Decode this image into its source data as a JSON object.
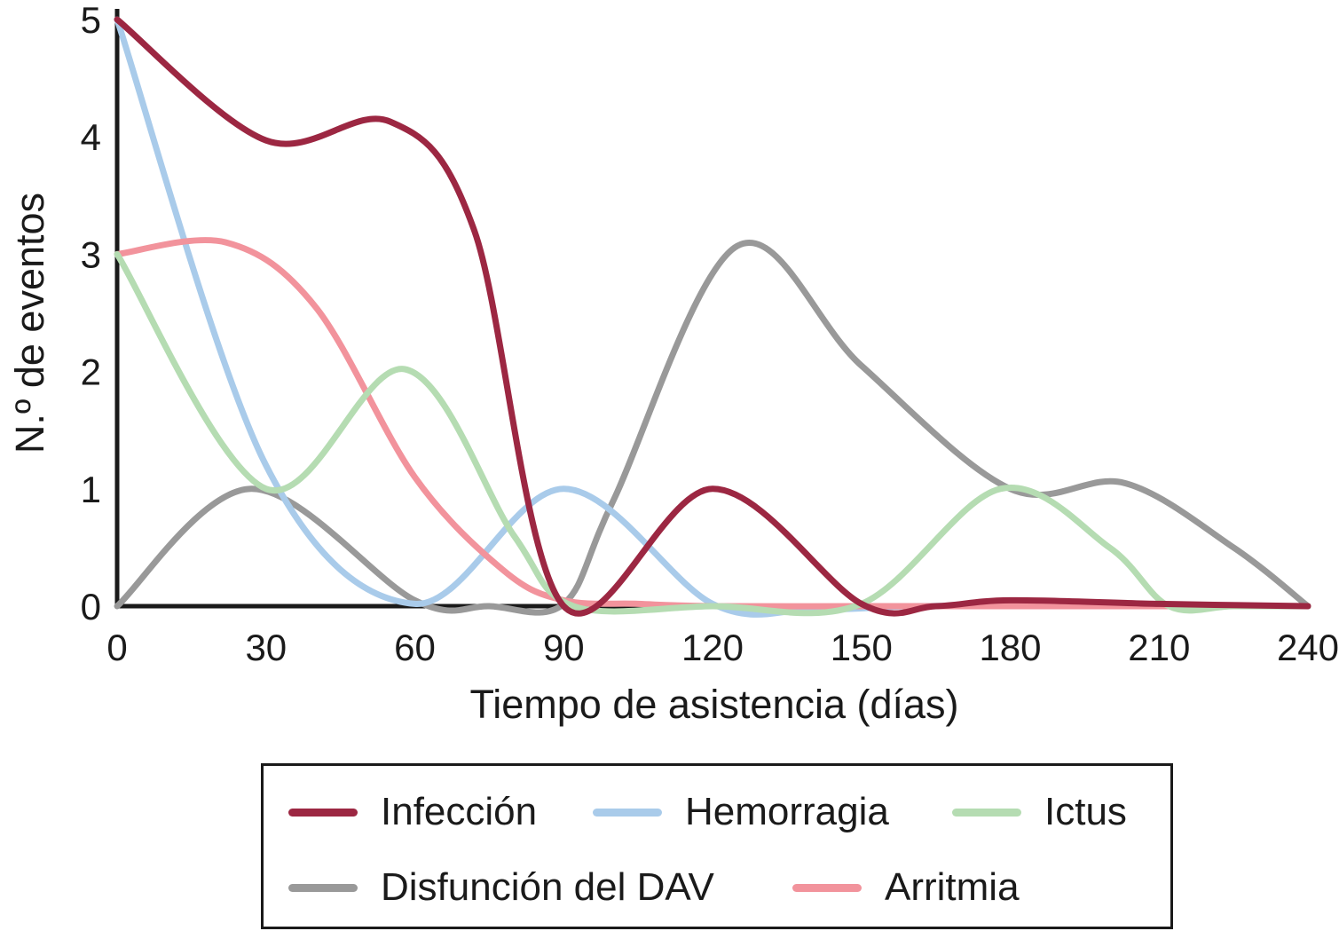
{
  "figure": {
    "background": "#ffffff",
    "axis_color": "#1a1a1a"
  },
  "chart_data": {
    "type": "line",
    "title": "",
    "xlabel": "Tiempo de asistencia (días)",
    "ylabel": "N.º de eventos",
    "xlim": [
      0,
      240
    ],
    "ylim": [
      0,
      5
    ],
    "x_ticks": [
      0,
      30,
      60,
      90,
      120,
      150,
      180,
      210,
      240
    ],
    "y_ticks": [
      0,
      1,
      2,
      3,
      4,
      5
    ],
    "grid": false,
    "smoothing": "spline",
    "legend_position": "bottom",
    "categories": [
      0,
      30,
      60,
      90,
      120,
      150,
      180,
      210,
      240
    ],
    "series": [
      {
        "name": "Infección",
        "color": "#9c2742",
        "values": [
          5,
          4,
          4,
          0,
          1,
          0,
          0,
          0,
          0
        ],
        "curve_points": [
          [
            0,
            5
          ],
          [
            30,
            3.97
          ],
          [
            55,
            4.13
          ],
          [
            72,
            3.2
          ],
          [
            90,
            0
          ],
          [
            120,
            1
          ],
          [
            150,
            0.02
          ],
          [
            165,
            0
          ],
          [
            180,
            0.05
          ],
          [
            210,
            0.02
          ],
          [
            240,
            0
          ]
        ]
      },
      {
        "name": "Hemorragia",
        "color": "#a9cbea",
        "values": [
          5,
          1,
          0,
          1,
          0,
          0,
          0,
          0,
          0
        ],
        "curve_points": [
          [
            0,
            5
          ],
          [
            30,
            1.2
          ],
          [
            60,
            0.02
          ],
          [
            90,
            1
          ],
          [
            120,
            0.02
          ],
          [
            140,
            -0.03
          ],
          [
            160,
            0
          ],
          [
            180,
            0
          ],
          [
            210,
            0
          ],
          [
            240,
            0
          ]
        ]
      },
      {
        "name": "Ictus",
        "color": "#b5dcb2",
        "values": [
          3,
          1,
          2,
          0,
          0,
          0,
          1,
          0,
          0
        ],
        "curve_points": [
          [
            0,
            3
          ],
          [
            30,
            1
          ],
          [
            58,
            2.02
          ],
          [
            80,
            0.6
          ],
          [
            92,
            0
          ],
          [
            120,
            0
          ],
          [
            150,
            0.02
          ],
          [
            178,
            1
          ],
          [
            200,
            0.5
          ],
          [
            212,
            0
          ],
          [
            225,
            0
          ],
          [
            240,
            0
          ]
        ]
      },
      {
        "name": "Disfunción del DAV",
        "color": "#999999",
        "values": [
          0,
          1,
          0,
          0,
          3,
          2,
          1,
          1,
          0
        ],
        "curve_points": [
          [
            0,
            0
          ],
          [
            27,
            1
          ],
          [
            60,
            0.05
          ],
          [
            75,
            0
          ],
          [
            90,
            0.02
          ],
          [
            100,
            0.9
          ],
          [
            125,
            3.07
          ],
          [
            150,
            2.05
          ],
          [
            180,
            1
          ],
          [
            203,
            1.05
          ],
          [
            225,
            0.5
          ],
          [
            240,
            0
          ]
        ]
      },
      {
        "name": "Arritmia",
        "color": "#f2939c",
        "values": [
          3,
          3,
          1,
          0,
          0,
          0,
          0,
          0,
          0
        ],
        "curve_points": [
          [
            0,
            3
          ],
          [
            22,
            3.1
          ],
          [
            40,
            2.55
          ],
          [
            60,
            1.1
          ],
          [
            78,
            0.3
          ],
          [
            90,
            0.05
          ],
          [
            105,
            0.02
          ],
          [
            120,
            0
          ],
          [
            150,
            0
          ],
          [
            180,
            0
          ],
          [
            210,
            0
          ],
          [
            240,
            0
          ]
        ]
      }
    ]
  },
  "legend": {
    "rows": [
      [
        "Infección",
        "Hemorragia",
        "Ictus"
      ],
      [
        "Disfunción del DAV",
        "Arritmia"
      ]
    ]
  }
}
